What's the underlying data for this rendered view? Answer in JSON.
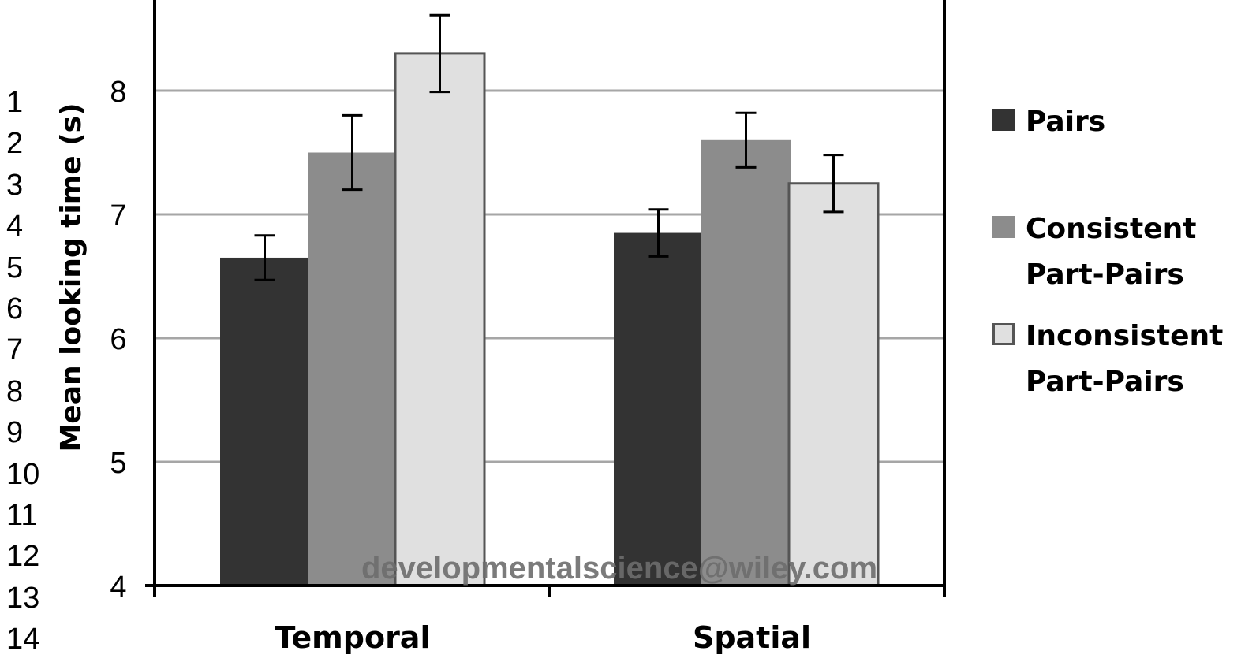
{
  "line_numbers": [
    "1",
    "2",
    "3",
    "4",
    "5",
    "6",
    "7",
    "8",
    "9",
    "10",
    "11",
    "12",
    "13",
    "14"
  ],
  "watermark": "developmentalscience@wiley.com",
  "colors": {
    "pairs": "#333333",
    "consistent": "#8c8c8c",
    "inconsistent": "#e0e0e0",
    "grid": "#a6a6a6",
    "axis": "#000000"
  },
  "chart_data": {
    "type": "bar",
    "title": "",
    "xlabel": "",
    "ylabel": "Mean looking time (s)",
    "ylim": [
      4,
      8.7
    ],
    "yticks": [
      4,
      5,
      6,
      7,
      8
    ],
    "grid": true,
    "legend_position": "right",
    "categories": [
      "Temporal",
      "Spatial"
    ],
    "series": [
      {
        "name": "Pairs",
        "values": [
          6.65,
          6.85
        ],
        "errors": [
          0.18,
          0.19
        ]
      },
      {
        "name": "Consistent\nPart-Pairs",
        "values": [
          7.5,
          7.6
        ],
        "errors": [
          0.3,
          0.22
        ]
      },
      {
        "name": "Inconsistent\nPart-Pairs",
        "values": [
          8.3,
          7.25
        ],
        "errors": [
          0.31,
          0.23
        ]
      }
    ]
  }
}
